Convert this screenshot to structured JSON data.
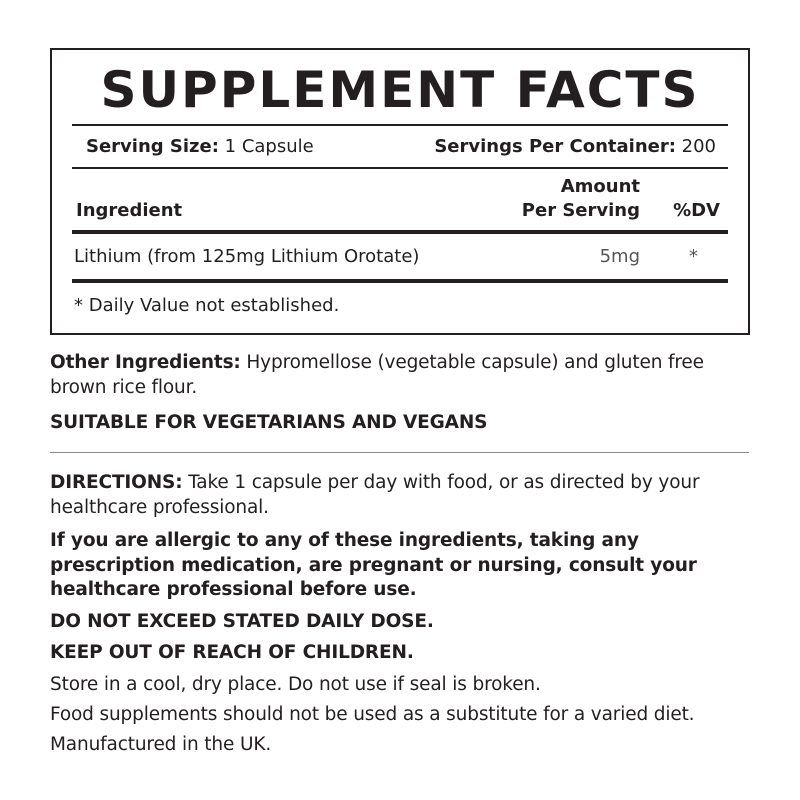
{
  "panel": {
    "title": "SUPPLEMENT FACTS",
    "serving_size_label": "Serving Size:",
    "serving_size_value": " 1 Capsule",
    "servings_per_container_label": "Servings Per Container:",
    "servings_per_container_value": " 200",
    "columns": {
      "ingredient": "Ingredient",
      "amount_line1": "Amount",
      "amount_line2": "Per Serving",
      "dv": "%DV"
    },
    "rows": [
      {
        "ingredient": "Lithium (from 125mg Lithium Orotate)",
        "amount": "5mg",
        "dv": "*"
      }
    ],
    "footnote": "* Daily Value not established."
  },
  "other_ingredients": {
    "label": "Other Ingredients:",
    "text": " Hypromellose (vegetable capsule) and gluten free brown rice flour."
  },
  "suitable": "SUITABLE FOR VEGETARIANS AND VEGANS",
  "directions": {
    "label": "DIRECTIONS:",
    "text": " Take 1 capsule per day with food, or as directed by your healthcare professional."
  },
  "allergy_warning": "If you are allergic to any of these ingredients, taking any prescription medication, are pregnant or nursing, consult your healthcare professional before use.",
  "dose_warning": "DO NOT EXCEED STATED DAILY DOSE.",
  "children_warning": "KEEP OUT OF REACH OF CHILDREN.",
  "storage": "Store in a cool, dry place. Do not use if seal is broken.",
  "diet_note": "Food supplements should not be used as a substitute for a varied diet.",
  "origin": "Manufactured in the UK."
}
